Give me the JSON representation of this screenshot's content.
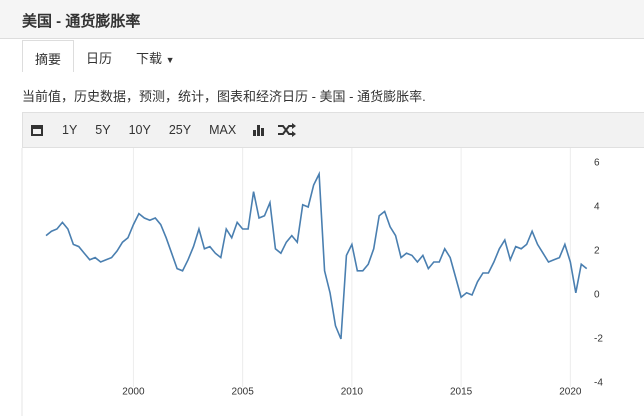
{
  "header": {
    "title": "美国 - 通货膨胀率"
  },
  "tabs": [
    "摘要",
    "日历",
    "下载"
  ],
  "description": "当前值，历史数据，预测，统计，图表和经济日历 - 美国 - 通货膨胀率.",
  "toolbar": [
    "1Y",
    "5Y",
    "10Y",
    "25Y",
    "MAX"
  ],
  "chart_data": {
    "type": "line",
    "color": "#4a7fb0",
    "x": [
      1996,
      1996.25,
      1996.5,
      1996.75,
      1997,
      1997.25,
      1997.5,
      1997.75,
      1998,
      1998.25,
      1998.5,
      1998.75,
      1999,
      1999.25,
      1999.5,
      1999.75,
      2000,
      2000.25,
      2000.5,
      2000.75,
      2001,
      2001.25,
      2001.5,
      2001.75,
      2002,
      2002.25,
      2002.5,
      2002.75,
      2003,
      2003.25,
      2003.5,
      2003.75,
      2004,
      2004.25,
      2004.5,
      2004.75,
      2005,
      2005.25,
      2005.5,
      2005.75,
      2006,
      2006.25,
      2006.5,
      2006.75,
      2007,
      2007.25,
      2007.5,
      2007.75,
      2008,
      2008.25,
      2008.5,
      2008.75,
      2009,
      2009.25,
      2009.5,
      2009.75,
      2010,
      2010.25,
      2010.5,
      2010.75,
      2011,
      2011.25,
      2011.5,
      2011.75,
      2012,
      2012.25,
      2012.5,
      2012.75,
      2013,
      2013.25,
      2013.5,
      2013.75,
      2014,
      2014.25,
      2014.5,
      2014.75,
      2015,
      2015.25,
      2015.5,
      2015.75,
      2016,
      2016.25,
      2016.5,
      2016.75,
      2017,
      2017.25,
      2017.5,
      2017.75,
      2018,
      2018.25,
      2018.5,
      2018.75,
      2019,
      2019.25,
      2019.5,
      2019.75,
      2020,
      2020.25,
      2020.5,
      2020.75
    ],
    "values": [
      2.7,
      2.9,
      3.0,
      3.3,
      3.0,
      2.3,
      2.2,
      1.9,
      1.6,
      1.7,
      1.5,
      1.6,
      1.7,
      2.0,
      2.4,
      2.6,
      3.2,
      3.7,
      3.5,
      3.4,
      3.5,
      3.2,
      2.6,
      1.9,
      1.2,
      1.1,
      1.6,
      2.2,
      3.0,
      2.1,
      2.2,
      1.9,
      1.7,
      3.0,
      2.6,
      3.3,
      3.0,
      3.0,
      4.7,
      3.5,
      3.6,
      4.2,
      2.1,
      1.9,
      2.4,
      2.7,
      2.4,
      4.1,
      4.0,
      5.0,
      5.5,
      1.1,
      0.1,
      -1.4,
      -2.0,
      1.8,
      2.3,
      1.1,
      1.1,
      1.4,
      2.1,
      3.6,
      3.8,
      3.1,
      2.7,
      1.7,
      1.9,
      1.8,
      1.5,
      1.8,
      1.2,
      1.5,
      1.5,
      2.1,
      1.7,
      0.8,
      -0.1,
      0.1,
      0.0,
      0.6,
      1.0,
      1.0,
      1.5,
      2.1,
      2.5,
      1.6,
      2.2,
      2.1,
      2.3,
      2.9,
      2.3,
      1.9,
      1.5,
      1.6,
      1.7,
      2.3,
      1.5,
      0.1,
      1.4,
      1.2
    ],
    "xlim": [
      1994.9,
      2020.9
    ],
    "xticks": [
      2000,
      2005,
      2010,
      2015,
      2020
    ],
    "ylim": [
      -4,
      6
    ],
    "yticks": [
      -4,
      -2,
      0,
      2,
      4,
      6
    ]
  }
}
